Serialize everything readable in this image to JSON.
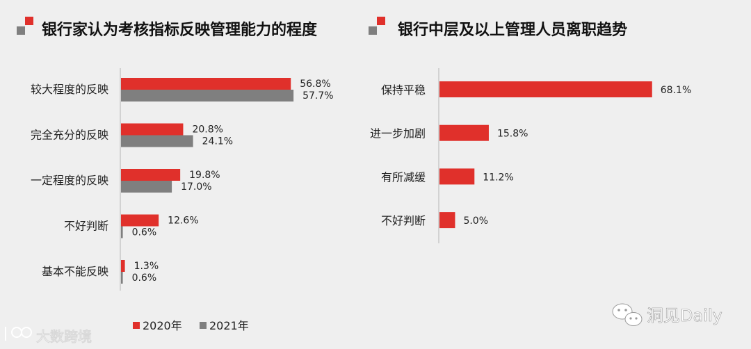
{
  "colors": {
    "red": "#e0302b",
    "gray": "#7f7f7f",
    "axis": "#bfbfbf",
    "title_text": "#111111",
    "label_text": "#222222",
    "watermark": "#ffffff"
  },
  "chart_data": [
    {
      "type": "bar",
      "orientation": "horizontal",
      "title": "银行家认为考核指标反映管理能力的程度",
      "categories": [
        "较大程度的反映",
        "完全充分的反映",
        "一定程度的反映",
        "不好判断",
        "基本不能反映"
      ],
      "series": [
        {
          "name": "2020年",
          "color": "#e0302b",
          "values": [
            56.8,
            20.8,
            19.8,
            12.6,
            1.3
          ],
          "labels": [
            "56.8%",
            "20.8%",
            "19.8%",
            "12.6%",
            "1.3%"
          ]
        },
        {
          "name": "2021年",
          "color": "#7f7f7f",
          "values": [
            57.7,
            24.1,
            17.0,
            0.6,
            0.6
          ],
          "labels": [
            "57.7%",
            "24.1%",
            "17.0%",
            "0.6%",
            "0.6%"
          ]
        }
      ],
      "xlim": [
        0,
        100
      ],
      "grid": false,
      "legend": "bottom"
    },
    {
      "type": "bar",
      "orientation": "horizontal",
      "title": "银行中层及以上管理人员离职趋势",
      "categories": [
        "保持平稳",
        "进一步加剧",
        "有所减缓",
        "不好判断"
      ],
      "series": [
        {
          "name": "",
          "color": "#e0302b",
          "values": [
            68.1,
            15.8,
            11.2,
            5.0
          ],
          "labels": [
            "68.1%",
            "15.8%",
            "11.2%",
            "5.0%"
          ]
        }
      ],
      "xlim": [
        0,
        100
      ],
      "grid": false,
      "legend": "none"
    }
  ],
  "watermarks": {
    "left": "大数跨境",
    "right": "洞见Daily"
  }
}
